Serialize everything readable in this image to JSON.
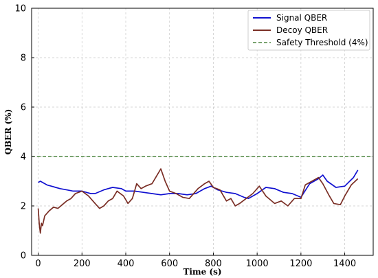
{
  "chart_data": {
    "type": "line",
    "xlabel": "Time (s)",
    "ylabel": "QBER (%)",
    "xlim": [
      -30,
      1530
    ],
    "ylim": [
      0,
      10
    ],
    "xticks": [
      0,
      200,
      400,
      600,
      800,
      1000,
      1200,
      1400
    ],
    "yticks": [
      0,
      2,
      4,
      6,
      8,
      10
    ],
    "grid": true,
    "legend_position": "top-right",
    "series": [
      {
        "name": "Signal QBER",
        "color": "#1010d0",
        "style": "solid",
        "x": [
          0,
          10,
          20,
          40,
          60,
          80,
          100,
          130,
          160,
          200,
          240,
          260,
          300,
          340,
          380,
          400,
          440,
          480,
          520,
          560,
          600,
          640,
          680,
          720,
          760,
          790,
          820,
          860,
          900,
          940,
          960,
          1000,
          1040,
          1080,
          1120,
          1160,
          1200,
          1240,
          1280,
          1300,
          1320,
          1360,
          1400,
          1440,
          1460
        ],
        "y": [
          2.95,
          3.0,
          2.95,
          2.85,
          2.8,
          2.75,
          2.7,
          2.65,
          2.6,
          2.6,
          2.5,
          2.5,
          2.65,
          2.75,
          2.7,
          2.6,
          2.6,
          2.55,
          2.5,
          2.45,
          2.5,
          2.5,
          2.45,
          2.5,
          2.7,
          2.8,
          2.65,
          2.55,
          2.5,
          2.35,
          2.3,
          2.5,
          2.75,
          2.7,
          2.55,
          2.5,
          2.35,
          2.9,
          3.1,
          3.25,
          3.0,
          2.75,
          2.8,
          3.15,
          3.45
        ]
      },
      {
        "name": "Decoy QBER",
        "color": "#7a2e25",
        "style": "solid",
        "x": [
          0,
          5,
          10,
          15,
          20,
          30,
          50,
          70,
          90,
          110,
          130,
          150,
          170,
          200,
          230,
          260,
          280,
          300,
          320,
          340,
          360,
          390,
          410,
          430,
          450,
          470,
          490,
          520,
          540,
          560,
          580,
          600,
          630,
          660,
          690,
          710,
          730,
          760,
          780,
          800,
          830,
          860,
          880,
          900,
          920,
          950,
          980,
          1010,
          1040,
          1080,
          1110,
          1140,
          1170,
          1200,
          1220,
          1250,
          1280,
          1300,
          1330,
          1350,
          1380,
          1400,
          1430,
          1460
        ],
        "y": [
          1.9,
          1.25,
          0.9,
          1.3,
          1.2,
          1.6,
          1.8,
          1.95,
          1.9,
          2.05,
          2.2,
          2.3,
          2.5,
          2.6,
          2.4,
          2.1,
          1.9,
          2.0,
          2.2,
          2.3,
          2.6,
          2.4,
          2.1,
          2.3,
          2.9,
          2.7,
          2.8,
          2.9,
          3.2,
          3.5,
          3.0,
          2.6,
          2.5,
          2.35,
          2.3,
          2.5,
          2.7,
          2.9,
          3.0,
          2.75,
          2.65,
          2.2,
          2.3,
          2.0,
          2.1,
          2.3,
          2.5,
          2.8,
          2.4,
          2.1,
          2.2,
          2.0,
          2.3,
          2.3,
          2.85,
          3.0,
          3.15,
          2.9,
          2.4,
          2.1,
          2.05,
          2.4,
          2.85,
          3.1
        ]
      },
      {
        "name": "Safety Threshold (4%)",
        "color": "#2a6e1a",
        "style": "dashed",
        "x": [
          -30,
          1530
        ],
        "y": [
          4,
          4
        ]
      }
    ]
  }
}
